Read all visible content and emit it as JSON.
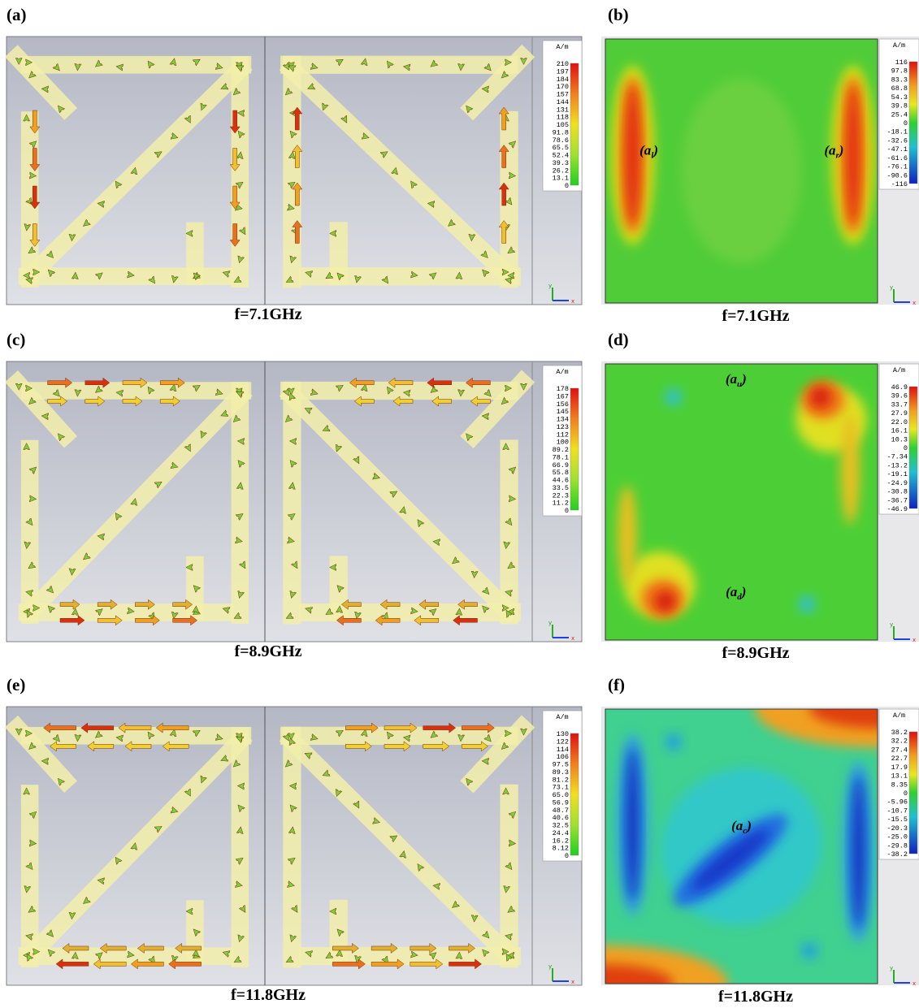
{
  "axes": {
    "x": "x",
    "y": "y"
  },
  "panels": [
    {
      "label": "(a)",
      "caption": "f=7.1GHz",
      "unit": "A/m",
      "scale": [
        "210",
        "197",
        "184",
        "170",
        "157",
        "144",
        "131",
        "118",
        "105",
        "91.8",
        "78.6",
        "65.5",
        "52.4",
        "39.3",
        "26.2",
        "13.1",
        "0"
      ]
    },
    {
      "label": "(b)",
      "caption": "f=7.1GHz",
      "unit": "A/m",
      "scale": [
        "116",
        "97.8",
        "83.3",
        "68.8",
        "54.3",
        "39.8",
        "25.4",
        "0",
        "-18.1",
        "-32.6",
        "-47.1",
        "-61.6",
        "-76.1",
        "-90.6",
        "-116"
      ],
      "annotations": [
        {
          "pre": "(a",
          "sub": "l",
          "post": ")"
        },
        {
          "pre": "(a",
          "sub": "r",
          "post": ")"
        }
      ]
    },
    {
      "label": "(c)",
      "caption": "f=8.9GHz",
      "unit": "A/m",
      "scale": [
        "178",
        "167",
        "156",
        "145",
        "134",
        "123",
        "112",
        "100",
        "89.2",
        "78.1",
        "66.9",
        "55.8",
        "44.6",
        "33.5",
        "22.3",
        "11.2",
        "0"
      ]
    },
    {
      "label": "(d)",
      "caption": "f=8.9GHz",
      "unit": "A/m",
      "scale": [
        "46.9",
        "39.6",
        "33.7",
        "27.9",
        "22.0",
        "16.1",
        "10.3",
        "0",
        "-7.34",
        "-13.2",
        "-19.1",
        "-24.9",
        "-30.8",
        "-36.7",
        "-46.9"
      ],
      "annotations": [
        {
          "pre": "(a",
          "sub": "u",
          "post": ")"
        },
        {
          "pre": "(a",
          "sub": "d",
          "post": ")"
        }
      ]
    },
    {
      "label": "(e)",
      "caption": "f=11.8GHz",
      "unit": "A/m",
      "scale": [
        "130",
        "122",
        "114",
        "106",
        "97.5",
        "89.3",
        "81.2",
        "73.1",
        "65.0",
        "56.9",
        "48.7",
        "40.6",
        "32.5",
        "24.4",
        "16.2",
        "8.12",
        "0"
      ]
    },
    {
      "label": "(f)",
      "caption": "f=11.8GHz",
      "unit": "A/m",
      "scale": [
        "38.2",
        "32.2",
        "27.4",
        "22.7",
        "17.9",
        "13.1",
        "8.35",
        "0",
        "-5.96",
        "-10.7",
        "-15.5",
        "-20.3",
        "-25.0",
        "-29.8",
        "-38.2"
      ],
      "annotations": [
        {
          "pre": "(a",
          "sub": "c",
          "post": ")"
        }
      ]
    }
  ]
}
